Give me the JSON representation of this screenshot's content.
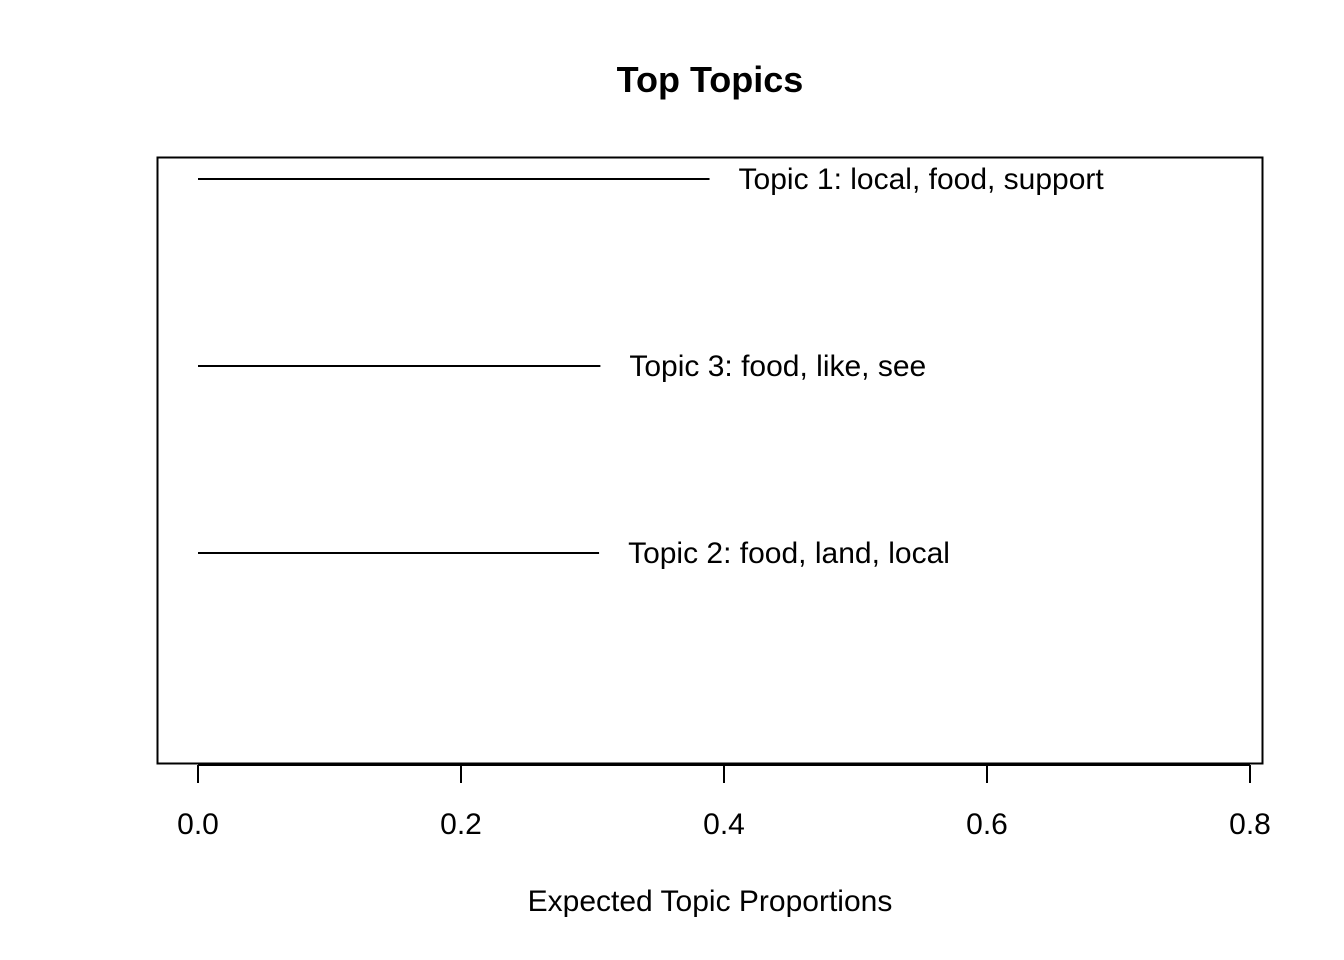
{
  "chart_data": {
    "type": "line",
    "title": "Top Topics",
    "xlabel": "Expected Topic Proportions",
    "ylabel": "",
    "xlim": [
      0.0,
      0.8
    ],
    "x_ticks": [
      "0.0",
      "0.2",
      "0.4",
      "0.6",
      "0.8"
    ],
    "grid": false,
    "series": [
      {
        "label": "Topic 1: local, food, support",
        "value": 0.389
      },
      {
        "label": "Topic 3: food, like, see",
        "value": 0.306
      },
      {
        "label": "Topic 2: food, land, local",
        "value": 0.305
      }
    ],
    "colors": {
      "line": "#000000",
      "frame": "#000000",
      "text": "#000000",
      "background": "#ffffff"
    }
  }
}
